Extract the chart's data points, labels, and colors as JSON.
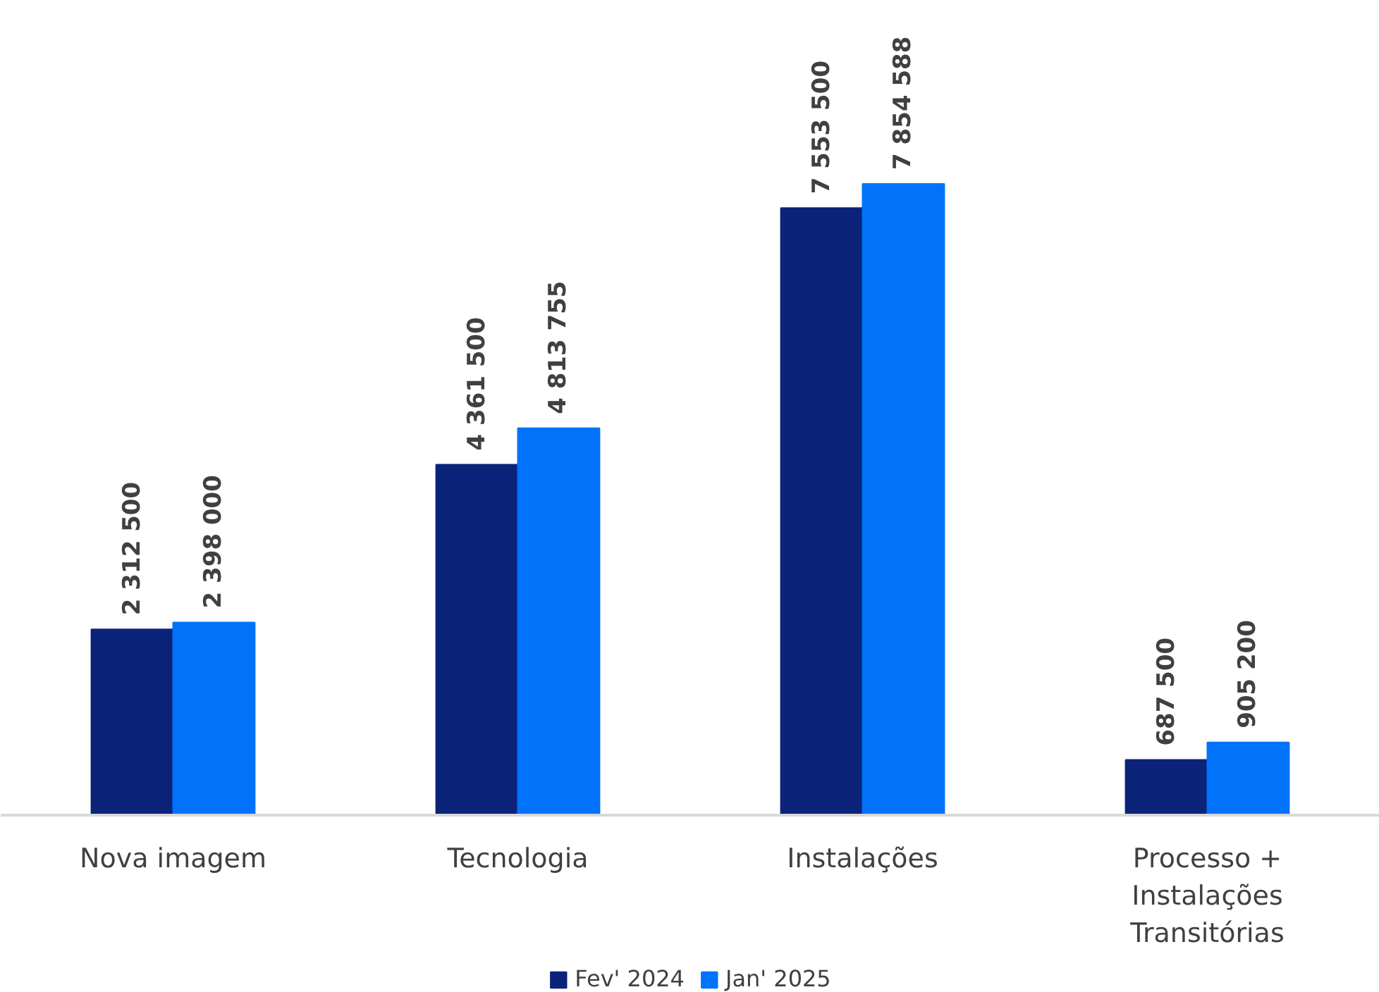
{
  "chart_data": {
    "type": "bar",
    "categories": [
      "Nova imagem",
      "Tecnologia",
      "Instalações",
      "Processo + Instalações Transitórias"
    ],
    "series": [
      {
        "name": "Fev' 2024",
        "color": "#0b2378",
        "values": [
          2312500,
          4361500,
          7553500,
          687500
        ]
      },
      {
        "name": "Jan' 2025",
        "color": "#0073fa",
        "values": [
          2398000,
          4813755,
          7854588,
          905200
        ]
      }
    ],
    "data_labels": true,
    "legend": "bottom",
    "grid": false
  }
}
